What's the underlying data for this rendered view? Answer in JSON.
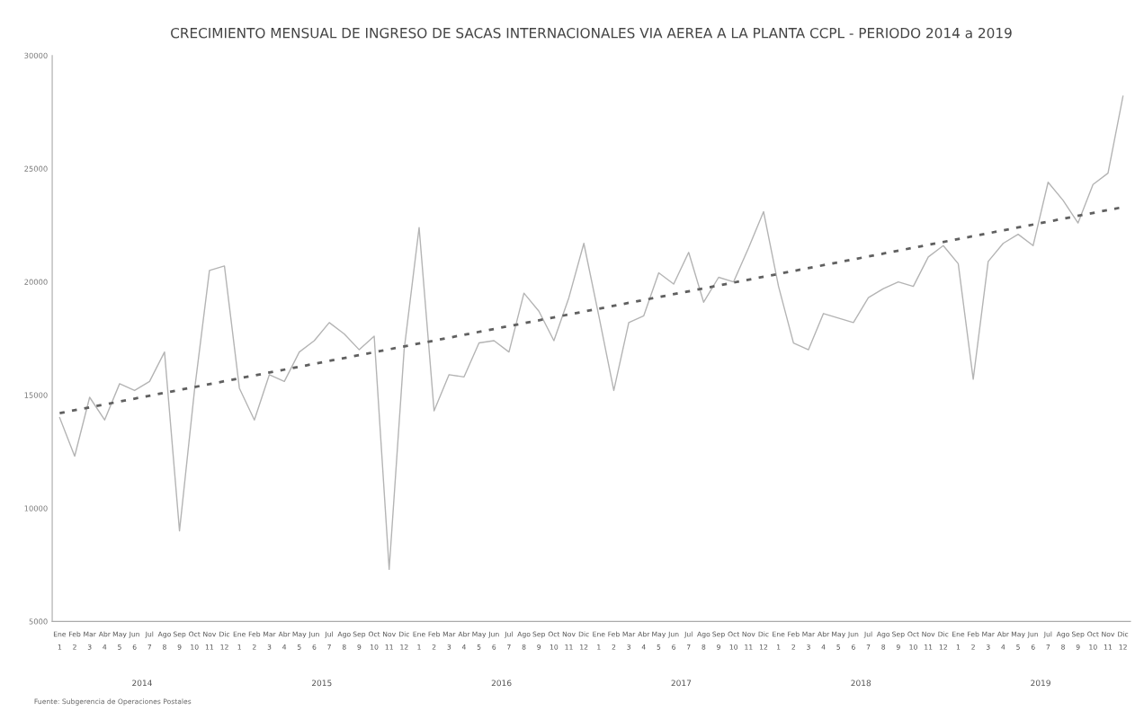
{
  "chart_data": {
    "type": "line",
    "title": "CRECIMIENTO MENSUAL DE INGRESO DE SACAS INTERNACIONALES VIA AEREA A LA PLANTA CCPL - PERIODO 2014 a 2019",
    "categories": [
      "Ene\n1",
      "Feb\n2",
      "Mar\n3",
      "Abr\n4",
      "May\n5",
      "Jun\n6",
      "Jul\n7",
      "Ago\n8",
      "Sep\n9",
      "Oct\n10",
      "Nov\n11",
      "Dic\n12",
      "Ene\n1",
      "Feb\n2",
      "Mar\n3",
      "Abr\n4",
      "May\n5",
      "Jun\n6",
      "Jul\n7",
      "Ago\n8",
      "Sep\n9",
      "Oct\n10",
      "Nov\n11",
      "Dic\n12",
      "Ene\n1",
      "Feb\n2",
      "Mar\n3",
      "Abr\n4",
      "May\n5",
      "Jun\n6",
      "Jul\n7",
      "Ago\n8",
      "Sep\n9",
      "Oct\n10",
      "Nov\n11",
      "Dic\n12",
      "Ene\n1",
      "Feb\n2",
      "Mar\n3",
      "Abr\n4",
      "May\n5",
      "Jun\n6",
      "Jul\n7",
      "Ago\n8",
      "Sep\n9",
      "Oct\n10",
      "Nov\n11",
      "Dic\n12",
      "Ene\n1",
      "Feb\n2",
      "Mar\n3",
      "Abr\n4",
      "May\n5",
      "Jun\n6",
      "Jul\n7",
      "Ago\n8",
      "Sep\n9",
      "Oct\n10",
      "Nov\n11",
      "Dic\n12",
      "Ene\n1",
      "Feb\n2",
      "Mar\n3",
      "Abr\n4",
      "May\n5",
      "Jun\n6",
      "Jul\n7",
      "Ago\n8",
      "Sep\n9",
      "Oct\n10",
      "Nov\n11",
      "Dic\n12"
    ],
    "series": [
      {
        "color": "#b4b4b4",
        "line_style": "solid",
        "values": [
          14000,
          12300,
          14900,
          13900,
          15500,
          15200,
          15600,
          16900,
          9000,
          15200,
          20500,
          20700,
          15300,
          13900,
          15900,
          15600,
          16900,
          17400,
          18200,
          17700,
          17000,
          17600,
          7300,
          17000,
          22400,
          14300,
          15900,
          15800,
          17300,
          17400,
          16900,
          19500,
          18700,
          17400,
          19300,
          21700,
          18500,
          15200,
          18200,
          18500,
          20400,
          19900,
          21300,
          19100,
          20200,
          20000,
          21500,
          23100,
          19800,
          17300,
          17000,
          18600,
          18400,
          18200,
          19300,
          19700,
          20000,
          19800,
          21100,
          21600,
          20800,
          15700,
          20900,
          21700,
          22100,
          21600,
          24400,
          23600,
          22600,
          24300,
          24800,
          28200
        ]
      },
      {
        "color": "#606060",
        "line_style": "dotted",
        "values": [
          14200,
          null,
          null,
          null,
          null,
          null,
          null,
          null,
          null,
          null,
          null,
          null,
          null,
          null,
          null,
          null,
          null,
          null,
          null,
          null,
          null,
          null,
          null,
          null,
          null,
          null,
          null,
          null,
          null,
          null,
          null,
          null,
          null,
          null,
          null,
          null,
          null,
          null,
          null,
          null,
          null,
          null,
          null,
          null,
          null,
          null,
          null,
          null,
          null,
          null,
          null,
          null,
          null,
          null,
          null,
          null,
          null,
          null,
          null,
          null,
          null,
          null,
          null,
          null,
          null,
          null,
          null,
          null,
          null,
          null,
          null,
          23300
        ]
      }
    ],
    "ylim": [
      5000,
      30000
    ],
    "yticks": [
      5000,
      10000,
      15000,
      20000,
      25000,
      30000
    ],
    "grid": false,
    "legend": false,
    "marker": "none",
    "annotations": [
      "2014",
      "2015",
      "2016",
      "2017",
      "2018",
      "2019",
      "Fuente: Subgerencia de Operaciones Postales"
    ]
  }
}
